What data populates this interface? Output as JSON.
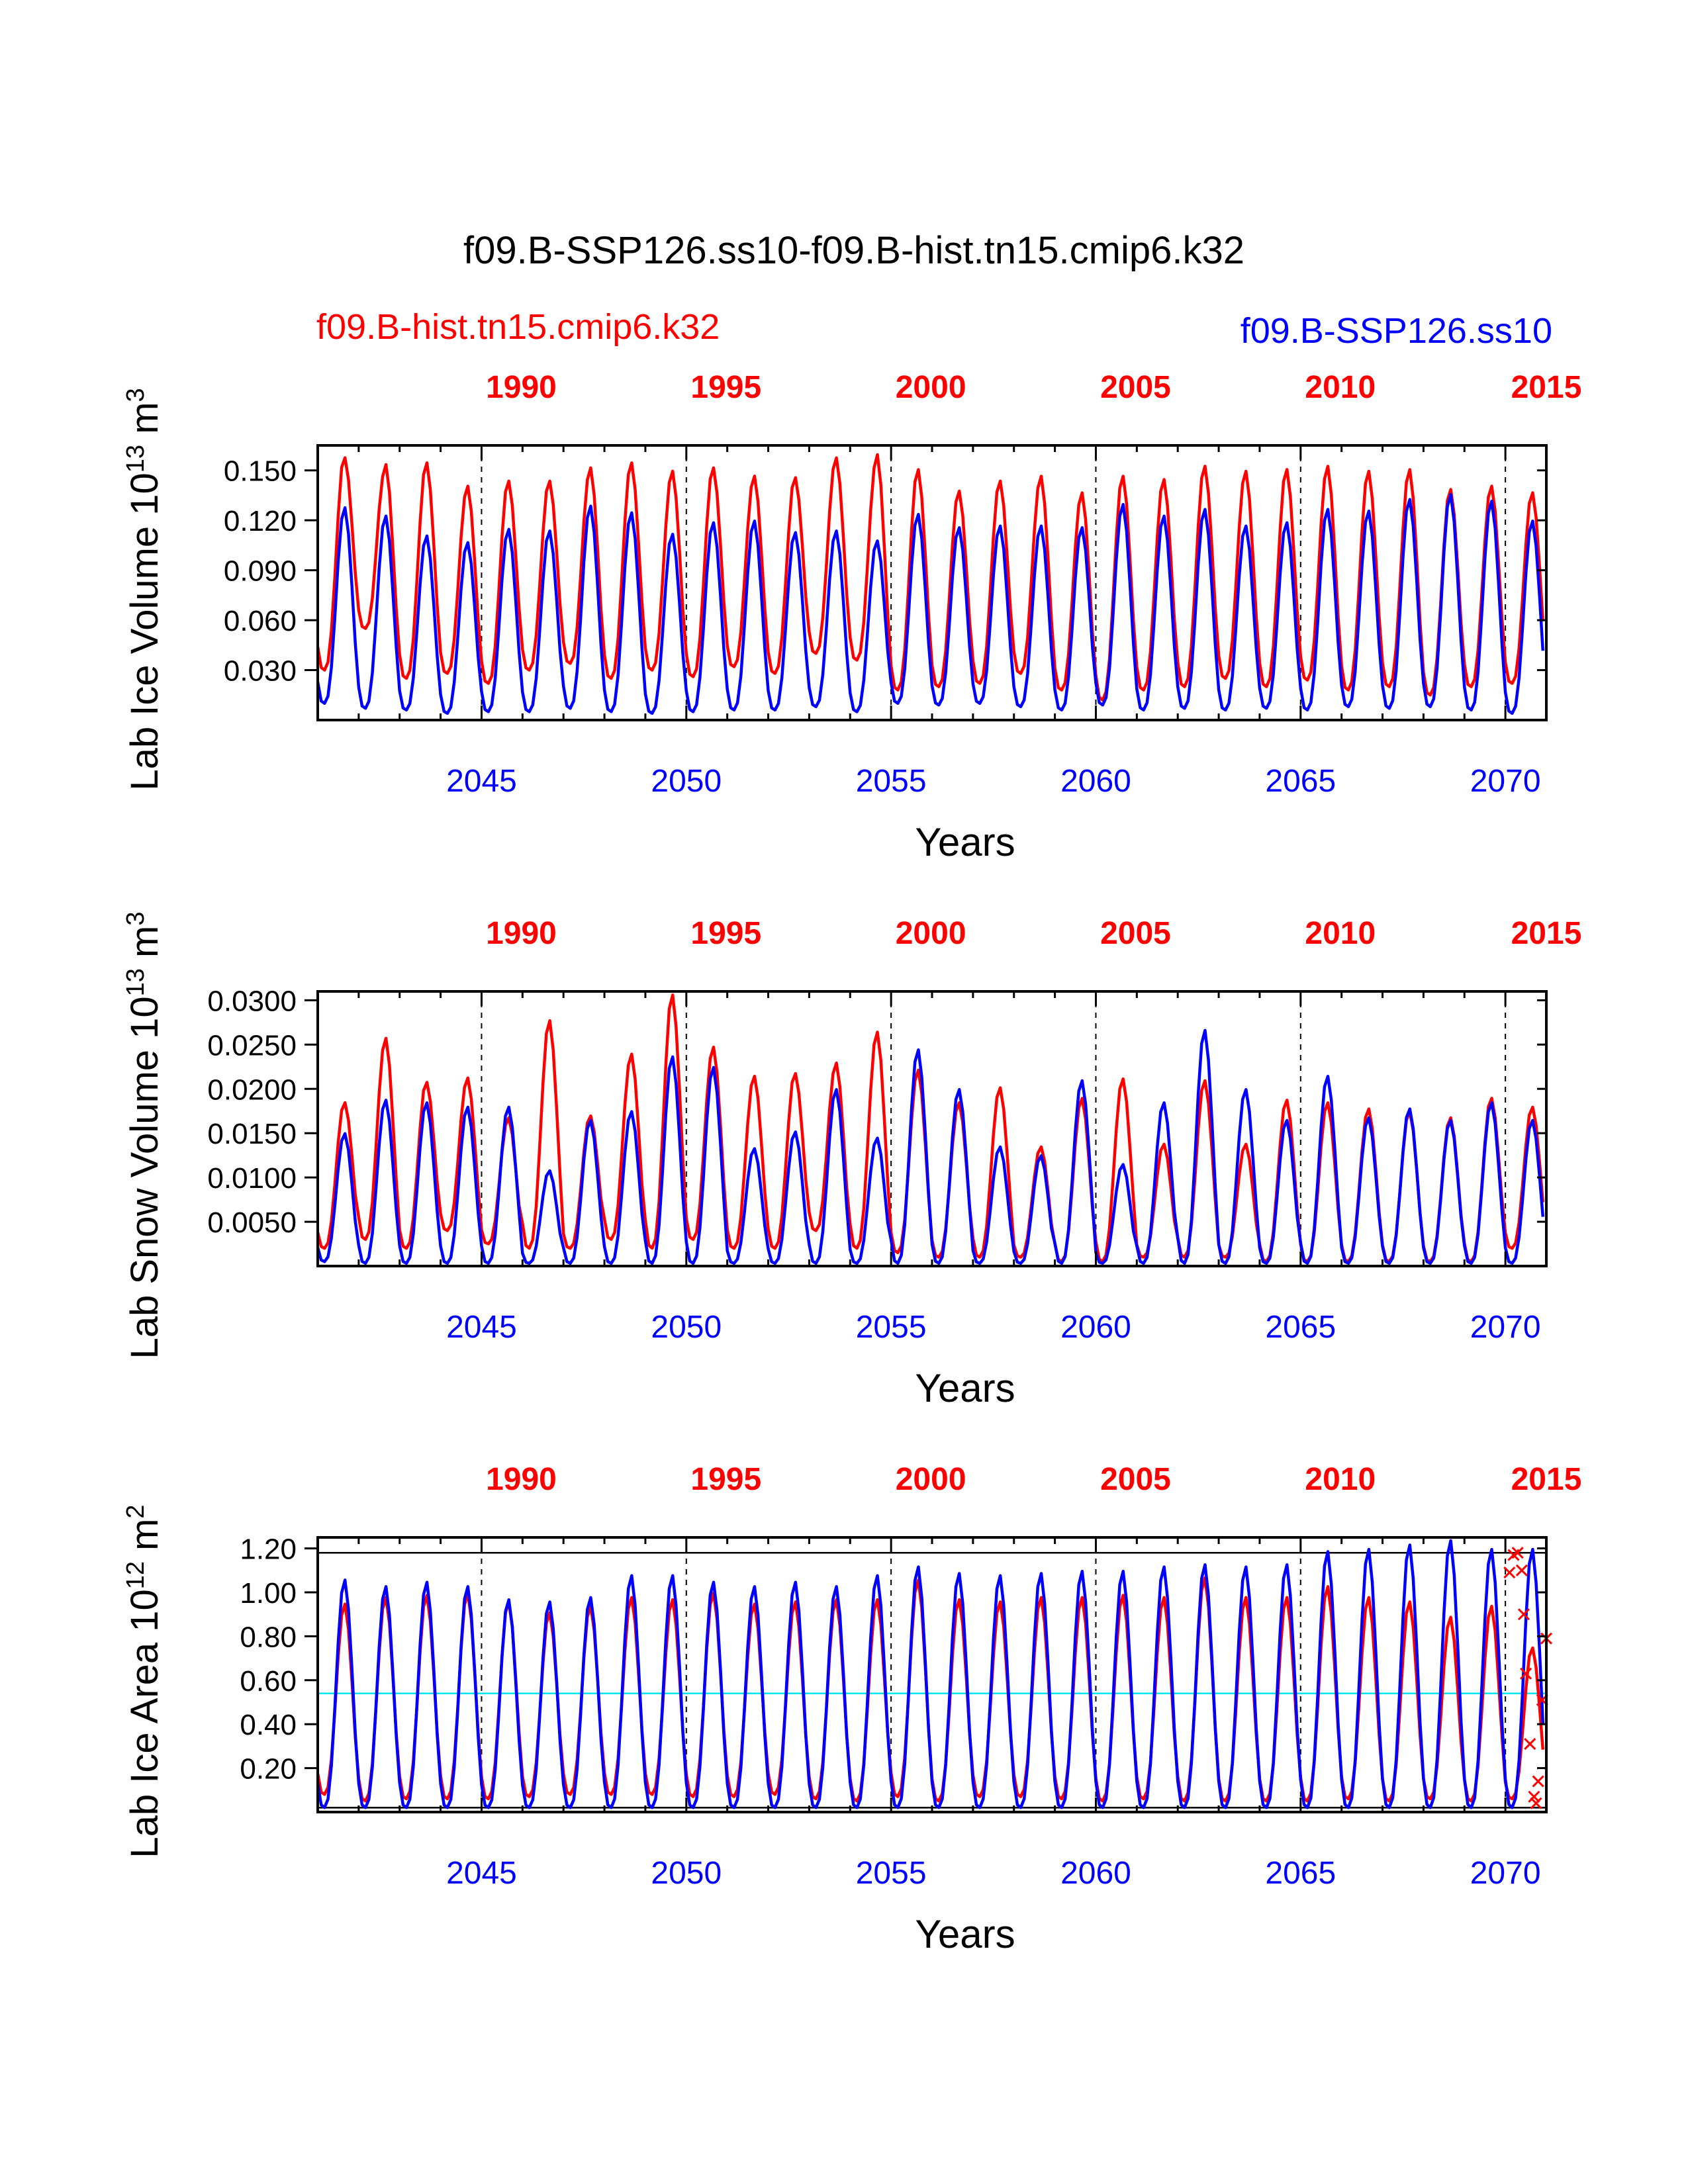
{
  "title": "f09.B-SSP126.ss10-f09.B-hist.tn15.cmip6.k32",
  "legend": {
    "red_label": "f09.B-hist.tn15.cmip6.k32",
    "blue_label": "f09.B-SSP126.ss10"
  },
  "colors": {
    "blue": "#0000ff",
    "red": "#ff0000",
    "cyan": "#00e5ee",
    "black": "#000000"
  },
  "chart_data": [
    {
      "type": "line",
      "ylabel": "Lab Ice Volume 10",
      "ylabel_sup": "13",
      "ylabel_unit": " m",
      "ylabel_unit_sup": "3",
      "xlabel": "Years",
      "xlim": [
        2041,
        2071
      ],
      "ylim": [
        0.0,
        0.165
      ],
      "yticks": [
        "0.030",
        "0.060",
        "0.090",
        "0.120",
        "0.150"
      ],
      "yticks_values": [
        0.03,
        0.06,
        0.09,
        0.12,
        0.15
      ],
      "bottom_ticks": [
        "2045",
        "2050",
        "2055",
        "2060",
        "2065",
        "2070"
      ],
      "top_ticks": [
        "1990",
        "1995",
        "2000",
        "2005",
        "2010",
        "2015"
      ],
      "dashed_lines_x": [
        2045,
        2050,
        2055,
        2060,
        2065,
        2070
      ],
      "grid": false,
      "series": [
        {
          "color": "red",
          "peaks": [
            0.158,
            0.154,
            0.155,
            0.141,
            0.144,
            0.144,
            0.152,
            0.155,
            0.15,
            0.152,
            0.147,
            0.146,
            0.158,
            0.16,
            0.151,
            0.138,
            0.144,
            0.147,
            0.137,
            0.147,
            0.145,
            0.153,
            0.15,
            0.151,
            0.153,
            0.15,
            0.151,
            0.139,
            0.141,
            0.137
          ],
          "troughs": [
            0.03,
            0.055,
            0.025,
            0.028,
            0.022,
            0.03,
            0.034,
            0.025,
            0.03,
            0.026,
            0.032,
            0.028,
            0.04,
            0.036,
            0.018,
            0.02,
            0.022,
            0.028,
            0.018,
            0.012,
            0.018,
            0.02,
            0.025,
            0.02,
            0.024,
            0.018,
            0.02,
            0.015,
            0.02,
            0.022
          ]
        },
        {
          "color": "blue",
          "peaks": [
            0.128,
            0.123,
            0.111,
            0.107,
            0.115,
            0.114,
            0.129,
            0.125,
            0.112,
            0.119,
            0.12,
            0.113,
            0.114,
            0.108,
            0.124,
            0.116,
            0.117,
            0.117,
            0.116,
            0.13,
            0.123,
            0.127,
            0.117,
            0.119,
            0.127,
            0.126,
            0.133,
            0.136,
            0.132,
            0.12
          ],
          "troughs": [
            0.01,
            0.007,
            0.006,
            0.004,
            0.005,
            0.005,
            0.007,
            0.005,
            0.004,
            0.005,
            0.006,
            0.006,
            0.008,
            0.005,
            0.01,
            0.009,
            0.01,
            0.008,
            0.006,
            0.009,
            0.006,
            0.007,
            0.006,
            0.007,
            0.006,
            0.008,
            0.007,
            0.008,
            0.006,
            0.004
          ]
        }
      ]
    },
    {
      "type": "line",
      "ylabel": "Lab Snow Volume 10",
      "ylabel_sup": "13",
      "ylabel_unit": " m",
      "ylabel_unit_sup": "3",
      "xlabel": "Years",
      "xlim": [
        2041,
        2071
      ],
      "ylim": [
        0.0,
        0.031
      ],
      "yticks": [
        "0.0050",
        "0.0100",
        "0.0150",
        "0.0200",
        "0.0250",
        "0.0300"
      ],
      "yticks_values": [
        0.005,
        0.01,
        0.015,
        0.02,
        0.025,
        0.03
      ],
      "bottom_ticks": [
        "2045",
        "2050",
        "2055",
        "2060",
        "2065",
        "2070"
      ],
      "top_ticks": [
        "1990",
        "1995",
        "2000",
        "2005",
        "2010",
        "2015"
      ],
      "dashed_lines_x": [
        2045,
        2050,
        2055,
        2060,
        2065,
        2070
      ],
      "grid": false,
      "series": [
        {
          "color": "red",
          "peaks": [
            0.0185,
            0.0258,
            0.0208,
            0.0213,
            0.0168,
            0.0278,
            0.017,
            0.024,
            0.0307,
            0.0248,
            0.0215,
            0.0218,
            0.023,
            0.0265,
            0.0222,
            0.0185,
            0.0202,
            0.0135,
            0.019,
            0.0212,
            0.0138,
            0.021,
            0.0138,
            0.0188,
            0.0185,
            0.0178,
            0.0175,
            0.0168,
            0.019,
            0.018
          ],
          "troughs": [
            0.002,
            0.003,
            0.002,
            0.004,
            0.0025,
            0.002,
            0.002,
            0.003,
            0.002,
            0.003,
            0.002,
            0.002,
            0.004,
            0.002,
            0.0015,
            0.001,
            0.001,
            0.001,
            0.0005,
            0.0005,
            0.001,
            0.001,
            0.001,
            0.0005,
            0.0005,
            0.0005,
            0.0005,
            0.0005,
            0.0005,
            0.002
          ]
        },
        {
          "color": "blue",
          "peaks": [
            0.015,
            0.0188,
            0.0185,
            0.018,
            0.018,
            0.0108,
            0.0165,
            0.0175,
            0.0237,
            0.0225,
            0.0133,
            0.0152,
            0.02,
            0.0145,
            0.0245,
            0.02,
            0.0135,
            0.0125,
            0.021,
            0.0115,
            0.0185,
            0.0267,
            0.02,
            0.0165,
            0.0215,
            0.0168,
            0.0178,
            0.0165,
            0.0185,
            0.0165
          ],
          "troughs": [
            0.0005,
            0.0003,
            0.0003,
            0.0003,
            0.0003,
            0.0003,
            0.0003,
            0.0003,
            0.0003,
            0.0003,
            0.0003,
            0.0003,
            0.0003,
            0.0003,
            0.0003,
            0.0003,
            0.0003,
            0.0003,
            0.0003,
            0.0003,
            0.0003,
            0.0003,
            0.0003,
            0.0003,
            0.0003,
            0.0003,
            0.0003,
            0.0003,
            0.0003,
            0.0003
          ]
        }
      ]
    },
    {
      "type": "line",
      "ylabel": "Lab Ice Area 10",
      "ylabel_sup": "12",
      "ylabel_unit": " m",
      "ylabel_unit_sup": "2",
      "xlabel": "Years",
      "xlim": [
        2041,
        2071
      ],
      "ylim": [
        0.0,
        1.25
      ],
      "yticks": [
        "0.20",
        "0.40",
        "0.60",
        "0.80",
        "1.00",
        "1.20"
      ],
      "yticks_values": [
        0.2,
        0.4,
        0.6,
        0.8,
        1.0,
        1.2
      ],
      "bottom_ticks": [
        "2045",
        "2050",
        "2055",
        "2060",
        "2065",
        "2070"
      ],
      "top_ticks": [
        "1990",
        "1995",
        "2000",
        "2005",
        "2010",
        "2015"
      ],
      "dashed_lines_x": [
        2045,
        2050,
        2055,
        2060,
        2065,
        2070
      ],
      "hlines": [
        {
          "y": 1.18,
          "color": "black"
        },
        {
          "y": 0.02,
          "color": "black"
        },
        {
          "y": 0.54,
          "color": "cyan"
        }
      ],
      "grid": false,
      "series": [
        {
          "color": "red",
          "peaks": [
            0.95,
            0.98,
            0.99,
            1.0,
            0.96,
            0.91,
            0.94,
            0.98,
            0.97,
            1.0,
            0.95,
            0.96,
            0.97,
            0.97,
            1.06,
            0.97,
            0.96,
            0.98,
            0.98,
            0.99,
            0.98,
            1.07,
            0.98,
            0.98,
            1.03,
            0.98,
            0.96,
            0.89,
            0.94,
            0.75
          ],
          "troughs": [
            0.08,
            0.05,
            0.06,
            0.06,
            0.06,
            0.07,
            0.08,
            0.08,
            0.08,
            0.07,
            0.07,
            0.08,
            0.06,
            0.05,
            0.07,
            0.05,
            0.07,
            0.07,
            0.06,
            0.05,
            0.06,
            0.05,
            0.05,
            0.05,
            0.05,
            0.06,
            0.05,
            0.06,
            0.05,
            0.06
          ]
        },
        {
          "color": "blue",
          "peaks": [
            1.06,
            1.03,
            1.05,
            1.03,
            0.97,
            0.96,
            0.98,
            1.08,
            1.08,
            1.05,
            1.03,
            1.05,
            1.03,
            1.08,
            1.12,
            1.09,
            1.08,
            1.09,
            1.1,
            1.1,
            1.12,
            1.13,
            1.12,
            1.13,
            1.19,
            1.2,
            1.22,
            1.24,
            1.2,
            1.2
          ],
          "troughs": [
            0.02,
            0.02,
            0.02,
            0.02,
            0.02,
            0.02,
            0.02,
            0.02,
            0.02,
            0.02,
            0.02,
            0.02,
            0.02,
            0.02,
            0.02,
            0.02,
            0.02,
            0.02,
            0.02,
            0.02,
            0.02,
            0.02,
            0.02,
            0.02,
            0.02,
            0.02,
            0.02,
            0.02,
            0.02,
            0.02
          ]
        }
      ],
      "markers": {
        "color": "red",
        "symbol": "x",
        "points": [
          [
            2070.1,
            1.09
          ],
          [
            2070.2,
            1.17
          ],
          [
            2070.3,
            1.18
          ],
          [
            2070.4,
            1.1
          ],
          [
            2070.45,
            0.9
          ],
          [
            2070.5,
            0.63
          ],
          [
            2070.6,
            0.31
          ],
          [
            2070.7,
            0.07
          ],
          [
            2070.75,
            0.04
          ],
          [
            2070.8,
            0.14
          ],
          [
            2070.9,
            0.51
          ],
          [
            2071.0,
            0.79
          ]
        ]
      }
    }
  ]
}
